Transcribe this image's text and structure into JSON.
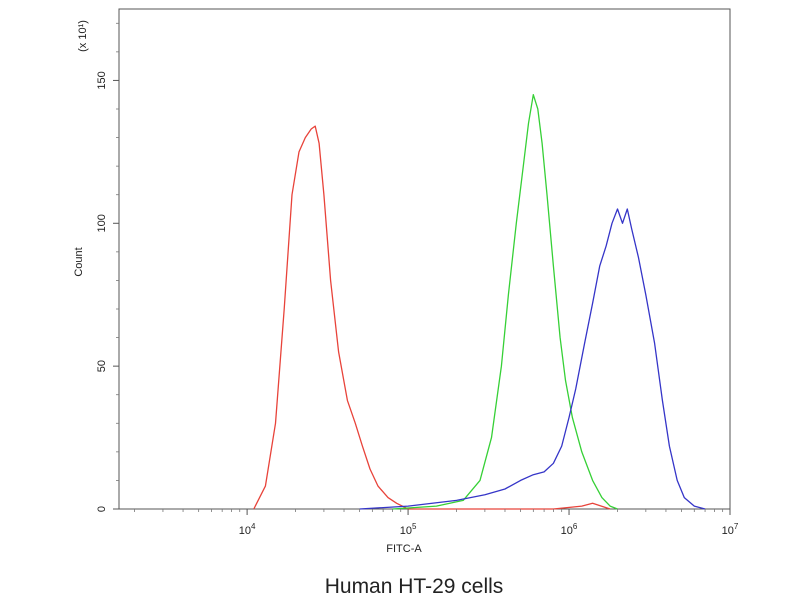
{
  "chart_data": {
    "type": "line",
    "title": "",
    "caption": "Human HT-29 cells",
    "xlabel": "FITC-A",
    "ylabel": "Count",
    "y_multiplier_label": "(x 10¹)",
    "x_scale": "log",
    "xlim": [
      1600,
      10000000
    ],
    "ylim": [
      0,
      175
    ],
    "x_ticks": [
      {
        "value": 10000,
        "base": "10",
        "exp": "4"
      },
      {
        "value": 100000,
        "base": "10",
        "exp": "5"
      },
      {
        "value": 1000000,
        "base": "10",
        "exp": "6"
      },
      {
        "value": 10000000,
        "base": "10",
        "exp": "7"
      }
    ],
    "y_ticks": [
      0,
      50,
      100,
      150
    ],
    "grid": false,
    "series": [
      {
        "color": "#e8433a",
        "x": [
          11000,
          13000,
          15000,
          17000,
          19000,
          21000,
          23000,
          25000,
          26500,
          28000,
          30000,
          33000,
          37000,
          42000,
          47000,
          52000,
          58000,
          65000,
          75000,
          85000,
          100000,
          200000,
          800000,
          1200000,
          1400000,
          1800000
        ],
        "y": [
          0,
          8,
          30,
          70,
          110,
          125,
          130,
          133,
          134,
          128,
          110,
          80,
          55,
          38,
          30,
          22,
          14,
          8,
          4,
          2,
          0,
          0,
          0,
          1,
          2,
          0
        ]
      },
      {
        "color": "#36d036",
        "x": [
          80000,
          150000,
          220000,
          280000,
          330000,
          380000,
          420000,
          470000,
          520000,
          560000,
          600000,
          640000,
          680000,
          730000,
          800000,
          880000,
          950000,
          1050000,
          1200000,
          1400000,
          1600000,
          1800000,
          2000000
        ],
        "y": [
          0,
          1,
          3,
          10,
          25,
          50,
          75,
          100,
          120,
          135,
          145,
          140,
          128,
          110,
          85,
          60,
          45,
          32,
          20,
          10,
          4,
          1,
          0
        ]
      },
      {
        "color": "#3535c8",
        "x": [
          50000,
          100000,
          200000,
          300000,
          400000,
          500000,
          600000,
          700000,
          800000,
          900000,
          1000000,
          1100000,
          1250000,
          1400000,
          1550000,
          1700000,
          1850000,
          2000000,
          2150000,
          2300000,
          2450000,
          2700000,
          3000000,
          3400000,
          3800000,
          4200000,
          4700000,
          5200000,
          6000000,
          7000000
        ],
        "y": [
          0,
          1,
          3,
          5,
          7,
          10,
          12,
          13,
          16,
          22,
          32,
          42,
          58,
          72,
          85,
          92,
          100,
          105,
          100,
          105,
          98,
          88,
          75,
          58,
          38,
          22,
          10,
          4,
          1,
          0
        ]
      }
    ]
  }
}
